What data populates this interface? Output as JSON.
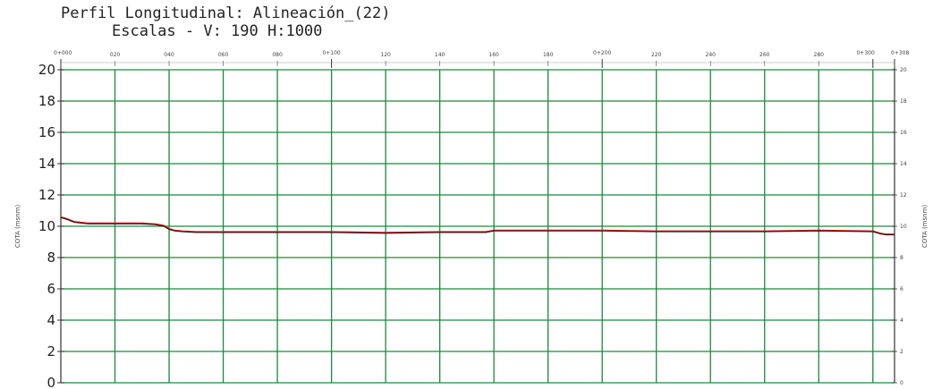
{
  "title": "Perfil Longitudinal: Alineación_(22)",
  "subtitle": "Escalas - V: 190 H:1000",
  "chart_data": {
    "type": "line",
    "ylabel_left": "COTA (msnm)",
    "ylabel_right": "COTA (msnm)",
    "xlim": [
      0,
      308
    ],
    "ylim": [
      0,
      20
    ],
    "y_ticks": [
      0,
      2,
      4,
      6,
      8,
      10,
      12,
      14,
      16,
      18,
      20
    ],
    "x_ticks_major": [
      {
        "x": 0,
        "label": "0+000"
      },
      {
        "x": 100,
        "label": "0+100"
      },
      {
        "x": 200,
        "label": "0+200"
      },
      {
        "x": 300,
        "label": "0+300"
      },
      {
        "x": 308,
        "label": "0+308"
      }
    ],
    "x_ticks_minor": [
      {
        "x": 20,
        "label": "020"
      },
      {
        "x": 40,
        "label": "040"
      },
      {
        "x": 60,
        "label": "060"
      },
      {
        "x": 80,
        "label": "080"
      },
      {
        "x": 120,
        "label": "120"
      },
      {
        "x": 140,
        "label": "140"
      },
      {
        "x": 160,
        "label": "160"
      },
      {
        "x": 180,
        "label": "180"
      },
      {
        "x": 220,
        "label": "220"
      },
      {
        "x": 240,
        "label": "240"
      },
      {
        "x": 260,
        "label": "260"
      },
      {
        "x": 280,
        "label": "280"
      }
    ],
    "grid": true,
    "grid_color": "#1a8a3a",
    "series": [
      {
        "color": "#e0201a",
        "x": [
          0,
          2,
          5,
          10,
          20,
          30,
          35,
          38,
          40,
          42,
          45,
          50,
          60,
          80,
          100,
          120,
          140,
          157,
          160,
          180,
          200,
          220,
          240,
          260,
          280,
          300,
          303,
          305,
          308
        ],
        "y": [
          10.6,
          10.5,
          10.3,
          10.2,
          10.2,
          10.2,
          10.15,
          10.05,
          9.85,
          9.75,
          9.7,
          9.65,
          9.65,
          9.65,
          9.65,
          9.6,
          9.65,
          9.65,
          9.75,
          9.75,
          9.75,
          9.7,
          9.7,
          9.7,
          9.75,
          9.7,
          9.55,
          9.5,
          9.5
        ]
      },
      {
        "color": "#111111",
        "x": [
          0,
          2,
          5,
          10,
          20,
          30,
          35,
          38,
          40,
          42,
          45,
          50,
          60,
          80,
          100,
          120,
          140,
          157,
          160,
          180,
          200,
          220,
          240,
          260,
          280,
          300,
          303,
          305,
          308
        ],
        "y": [
          10.55,
          10.45,
          10.25,
          10.15,
          10.15,
          10.15,
          10.1,
          10.0,
          9.8,
          9.7,
          9.65,
          9.6,
          9.6,
          9.6,
          9.6,
          9.55,
          9.6,
          9.6,
          9.7,
          9.7,
          9.7,
          9.65,
          9.65,
          9.65,
          9.7,
          9.65,
          9.5,
          9.45,
          9.45
        ]
      }
    ]
  }
}
